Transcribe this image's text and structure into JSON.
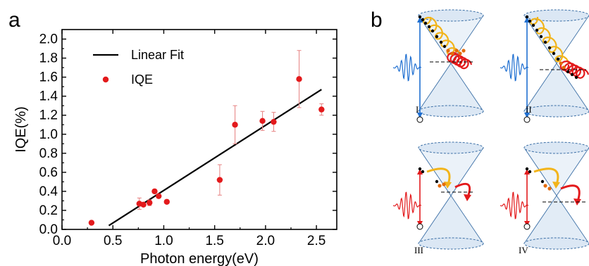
{
  "panels": {
    "a": "a",
    "b": "b"
  },
  "chart_data": {
    "type": "scatter",
    "xlabel": "Photon energy(eV)",
    "ylabel": "IQE(%)",
    "xlim": [
      0.0,
      2.7
    ],
    "ylim": [
      0.0,
      2.1
    ],
    "xticks": [
      "0.0",
      "0.5",
      "1.0",
      "1.5",
      "2.0",
      "2.5"
    ],
    "xtick_values": [
      0.0,
      0.5,
      1.0,
      1.5,
      2.0,
      2.5
    ],
    "yticks": [
      "0.0",
      "0.2",
      "0.4",
      "0.6",
      "0.8",
      "1.0",
      "1.2",
      "1.4",
      "1.6",
      "1.8",
      "2.0"
    ],
    "ytick_values": [
      0.0,
      0.2,
      0.4,
      0.6,
      0.8,
      1.0,
      1.2,
      1.4,
      1.6,
      1.8,
      2.0
    ],
    "grid": false,
    "legend": {
      "placement": "top-left",
      "entries": [
        "Linear Fit",
        "IQE"
      ]
    },
    "series": [
      {
        "name": "IQE",
        "color": "#e31a1c",
        "x": [
          0.29,
          0.76,
          0.8,
          0.86,
          0.91,
          0.95,
          1.03,
          1.55,
          1.7,
          1.97,
          2.08,
          2.33,
          2.55
        ],
        "y": [
          0.07,
          0.27,
          0.26,
          0.28,
          0.4,
          0.35,
          0.29,
          0.52,
          1.1,
          1.14,
          1.13,
          1.58,
          1.26
        ],
        "err": [
          0.0,
          0.06,
          0.0,
          0.03,
          0.0,
          0.0,
          0.0,
          0.16,
          0.2,
          0.1,
          0.1,
          0.3,
          0.06
        ]
      },
      {
        "name": "Linear Fit",
        "color": "#000000",
        "x": [
          0.46,
          2.55
        ],
        "y": [
          0.04,
          1.47
        ]
      }
    ]
  },
  "diagram": {
    "roman_labels": [
      "I",
      "II",
      "III",
      "IV"
    ],
    "colors": {
      "cone_fill": "#dbe7f4",
      "cone_stroke": "#3a6ea5",
      "blue_pulse": "#1f6fd1",
      "red_pulse": "#e31a1c",
      "arc": "#f2b41a",
      "dot": "#000000",
      "hot_dot": "#e36b0c"
    }
  }
}
